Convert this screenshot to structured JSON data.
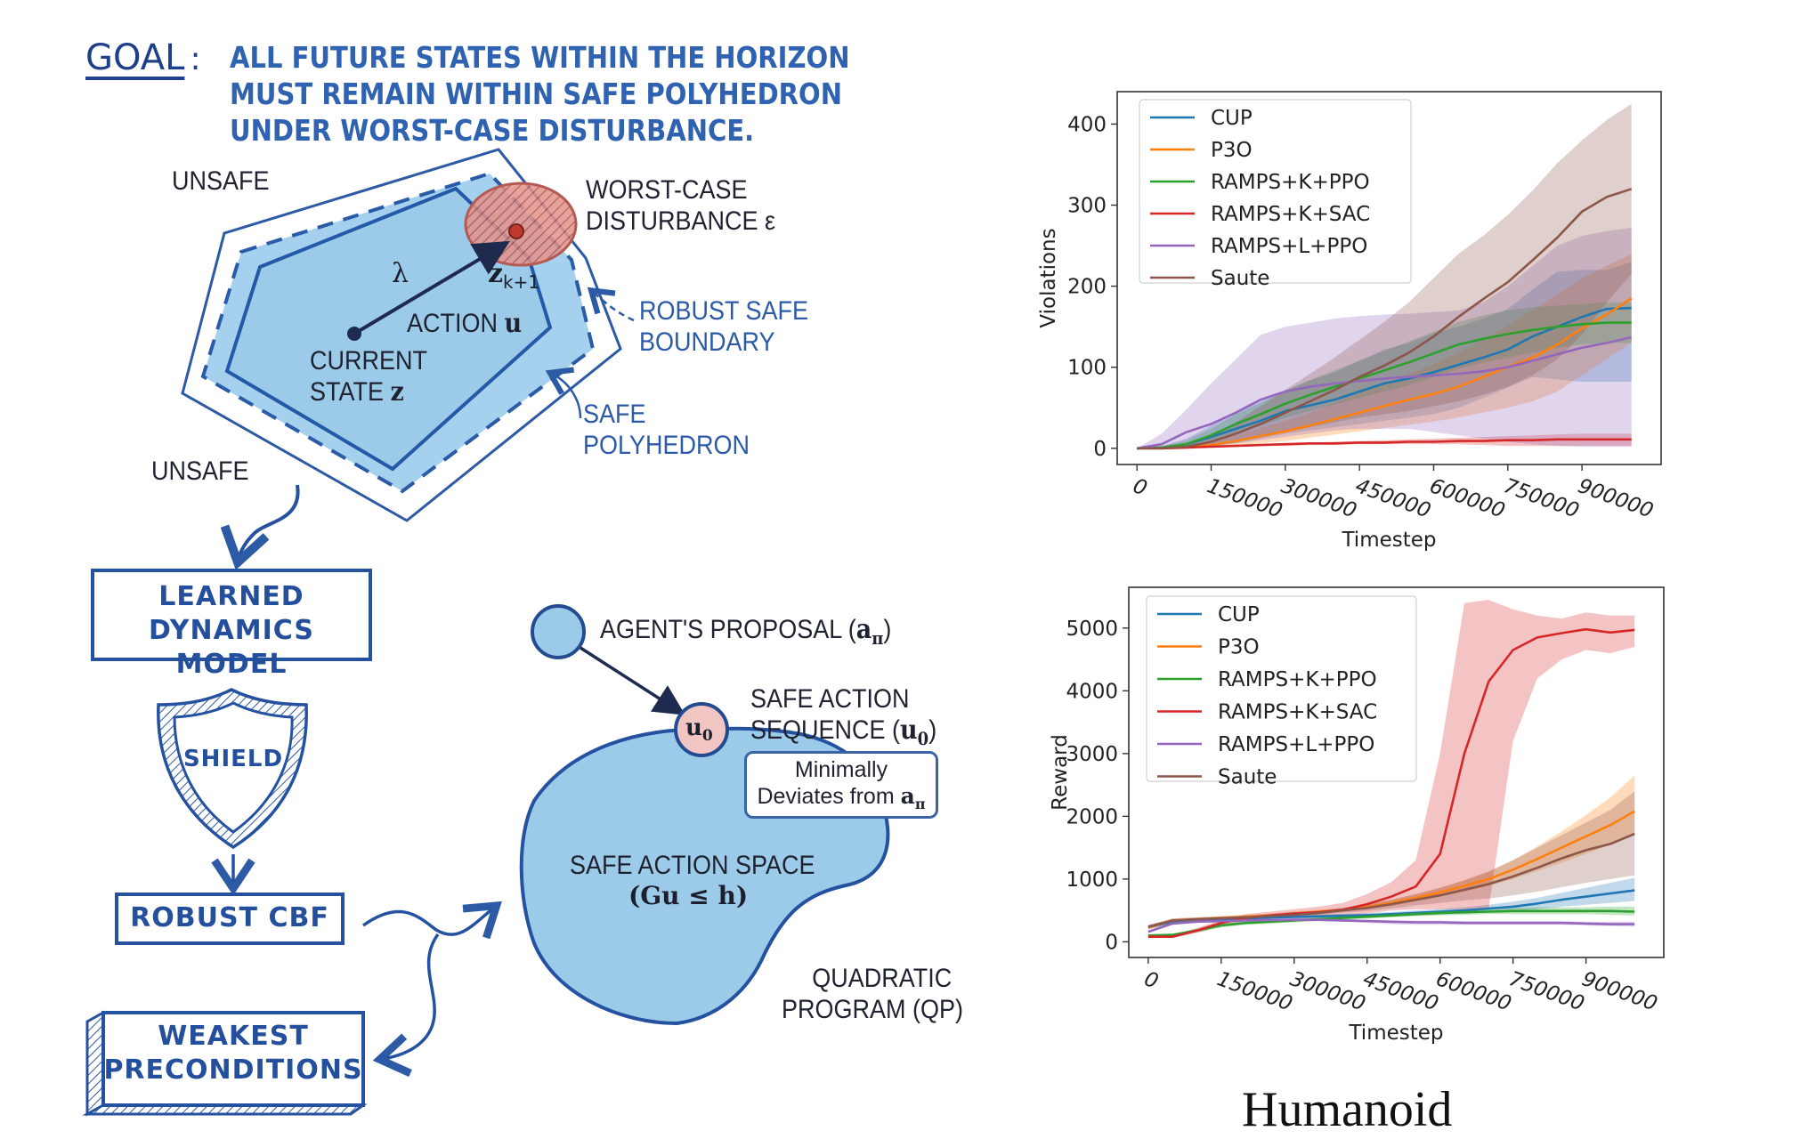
{
  "diagram": {
    "goal": {
      "label": "GOAL",
      "colon": ":",
      "lines": [
        "ALL FUTURE STATES WITHIN THE HORIZON",
        "MUST REMAIN WITHIN SAFE POLYHEDRON",
        "UNDER WORST-CASE DISTURBANCE."
      ]
    },
    "polyhedron": {
      "unsafe_top": "UNSAFE",
      "unsafe_bottom": "UNSAFE",
      "lambda": "λ",
      "next_state": "z",
      "next_state_sub": "k+1",
      "action_label": "ACTION ",
      "action_symbol": "u",
      "current_state_line1": "CURRENT",
      "current_state_line2": "STATE ",
      "current_state_symbol": "z",
      "worst_case_line1": "WORST-CASE",
      "worst_case_line2": "DISTURBANCE ε",
      "robust_boundary_line1": "ROBUST SAFE",
      "robust_boundary_line2": "BOUNDARY",
      "safe_poly_line1": "SAFE",
      "safe_poly_line2": "POLYHEDRON"
    },
    "pipeline": {
      "learned_model_line1": "LEARNED",
      "learned_model_line2": "DYNAMICS MODEL",
      "shield": "SHIELD",
      "robust_cbf": "ROBUST CBF",
      "weakest_line1": "WEAKEST",
      "weakest_line2": "PRECONDITIONS"
    },
    "qp": {
      "agent_proposal": "AGENT'S PROPOSAL (",
      "agent_symbol": "a",
      "agent_sub": "π",
      "agent_close": ")",
      "u0_symbol": "u",
      "u0_sub": "0",
      "safe_seq_line1": "SAFE ACTION",
      "safe_seq_line2": "SEQUENCE (",
      "safe_seq_symbol": "u",
      "safe_seq_sub": "0",
      "safe_seq_close": ")",
      "callout_line1": "Minimally",
      "callout_line2": "Deviates from ",
      "callout_symbol": "a",
      "callout_sub": "π",
      "space_line1": "SAFE ACTION SPACE",
      "space_line2": "(Gu ≤ h)",
      "qp_line1": "QUADRATIC",
      "qp_line2": "PROGRAM (QP)"
    },
    "colors": {
      "ink_blue": "#2d5aa5",
      "fill_blue": "#9ecbea",
      "disturbance_red": "#e28b84"
    }
  },
  "environment_label": "Humanoid",
  "chart_data": [
    {
      "type": "line",
      "title": "",
      "xlabel": "Timestep",
      "ylabel": "Violations",
      "xlim": [
        -40000,
        1060000
      ],
      "ylim": [
        -20,
        440
      ],
      "xticks": [
        0,
        150000,
        300000,
        450000,
        600000,
        750000,
        900000
      ],
      "xtick_labels": [
        "0",
        "150000",
        "300000",
        "450000",
        "600000",
        "750000",
        "900000"
      ],
      "yticks": [
        0,
        100,
        200,
        300,
        400
      ],
      "ytick_labels": [
        "0",
        "100",
        "200",
        "300",
        "400"
      ],
      "legend": "top-left",
      "grid": false,
      "x": [
        0,
        50000,
        100000,
        150000,
        200000,
        250000,
        300000,
        350000,
        400000,
        450000,
        500000,
        550000,
        600000,
        650000,
        700000,
        750000,
        800000,
        850000,
        900000,
        950000,
        1000000
      ],
      "series": [
        {
          "name": "CUP",
          "color": "#1f77b4",
          "values": [
            0,
            1,
            5,
            14,
            24,
            34,
            46,
            53,
            60,
            70,
            80,
            86,
            94,
            103,
            112,
            122,
            138,
            150,
            162,
            172,
            173
          ],
          "lower": [
            0,
            0,
            0,
            2,
            6,
            12,
            18,
            22,
            26,
            30,
            34,
            38,
            42,
            50,
            62,
            75,
            88,
            85,
            82,
            82,
            82
          ],
          "upper": [
            0,
            3,
            12,
            28,
            44,
            58,
            72,
            84,
            94,
            108,
            122,
            130,
            142,
            150,
            160,
            172,
            196,
            218,
            220,
            220,
            230
          ]
        },
        {
          "name": "P3O",
          "color": "#ff7f0e",
          "values": [
            0,
            0,
            1,
            4,
            9,
            15,
            21,
            28,
            36,
            44,
            52,
            60,
            67,
            76,
            88,
            100,
            112,
            128,
            148,
            165,
            185
          ],
          "lower": [
            0,
            0,
            0,
            1,
            3,
            6,
            9,
            13,
            17,
            21,
            25,
            29,
            33,
            38,
            44,
            50,
            58,
            70,
            90,
            110,
            130
          ],
          "upper": [
            0,
            1,
            3,
            8,
            16,
            25,
            34,
            44,
            56,
            68,
            80,
            92,
            104,
            118,
            134,
            152,
            170,
            190,
            210,
            225,
            240
          ]
        },
        {
          "name": "RAMPS+K+PPO",
          "color": "#2ca02c",
          "values": [
            0,
            1,
            5,
            16,
            30,
            42,
            55,
            66,
            76,
            86,
            96,
            106,
            117,
            128,
            135,
            141,
            146,
            150,
            153,
            155,
            155
          ],
          "lower": [
            0,
            0,
            1,
            8,
            18,
            28,
            38,
            46,
            54,
            62,
            70,
            78,
            88,
            98,
            106,
            112,
            118,
            124,
            128,
            130,
            130
          ],
          "upper": [
            0,
            2,
            10,
            24,
            42,
            56,
            70,
            84,
            96,
            108,
            120,
            132,
            144,
            156,
            164,
            170,
            174,
            176,
            178,
            180,
            180
          ]
        },
        {
          "name": "RAMPS+K+SAC",
          "color": "#d62728",
          "values": [
            0,
            0,
            1,
            2,
            3,
            4,
            5,
            6,
            6,
            7,
            7,
            8,
            8,
            9,
            9,
            10,
            10,
            11,
            11,
            11,
            11
          ],
          "lower": [
            0,
            0,
            0,
            1,
            2,
            3,
            3,
            4,
            4,
            5,
            5,
            5,
            5,
            5,
            4,
            3,
            3,
            3,
            3,
            3,
            3
          ],
          "upper": [
            0,
            1,
            2,
            3,
            4,
            5,
            6,
            7,
            8,
            9,
            10,
            11,
            12,
            13,
            14,
            15,
            16,
            17,
            18,
            18,
            18
          ]
        },
        {
          "name": "RAMPS+L+PPO",
          "color": "#9467bd",
          "values": [
            0,
            5,
            20,
            30,
            44,
            60,
            70,
            76,
            80,
            83,
            86,
            88,
            90,
            92,
            95,
            100,
            108,
            116,
            124,
            130,
            137
          ],
          "lower": [
            0,
            0,
            1,
            3,
            6,
            10,
            14,
            18,
            22,
            24,
            24,
            24,
            20,
            16,
            12,
            8,
            5,
            3,
            2,
            2,
            2
          ],
          "upper": [
            0,
            18,
            48,
            80,
            110,
            140,
            150,
            155,
            160,
            163,
            165,
            166,
            168,
            170,
            180,
            200,
            225,
            250,
            262,
            268,
            272
          ]
        },
        {
          "name": "Saute",
          "color": "#8c564b",
          "values": [
            0,
            0,
            2,
            8,
            18,
            30,
            44,
            58,
            72,
            88,
            102,
            118,
            138,
            162,
            184,
            205,
            232,
            260,
            292,
            310,
            320
          ],
          "lower": [
            0,
            0,
            1,
            3,
            8,
            14,
            20,
            26,
            32,
            38,
            42,
            46,
            52,
            58,
            66,
            76,
            90,
            110,
            140,
            180,
            215
          ],
          "upper": [
            0,
            1,
            4,
            14,
            32,
            52,
            72,
            92,
            112,
            134,
            156,
            180,
            210,
            240,
            262,
            288,
            318,
            352,
            380,
            405,
            425
          ]
        }
      ]
    },
    {
      "type": "line",
      "title": "",
      "xlabel": "Timestep",
      "ylabel": "Reward",
      "xlim": [
        -40000,
        1060000
      ],
      "ylim": [
        -250,
        5650
      ],
      "xticks": [
        0,
        150000,
        300000,
        450000,
        600000,
        750000,
        900000
      ],
      "xtick_labels": [
        "0",
        "150000",
        "300000",
        "450000",
        "600000",
        "750000",
        "900000"
      ],
      "yticks": [
        0,
        1000,
        2000,
        3000,
        4000,
        5000
      ],
      "ytick_labels": [
        "0",
        "1000",
        "2000",
        "3000",
        "4000",
        "5000"
      ],
      "legend": "top-left",
      "grid": false,
      "x": [
        0,
        50000,
        100000,
        150000,
        200000,
        250000,
        300000,
        350000,
        400000,
        450000,
        500000,
        550000,
        600000,
        650000,
        700000,
        750000,
        800000,
        850000,
        900000,
        950000,
        1000000
      ],
      "series": [
        {
          "name": "CUP",
          "color": "#1f77b4",
          "values": [
            230,
            320,
            340,
            360,
            375,
            385,
            395,
            405,
            415,
            425,
            440,
            460,
            480,
            500,
            530,
            560,
            610,
            670,
            720,
            770,
            820
          ],
          "lower": [
            200,
            290,
            310,
            330,
            345,
            355,
            365,
            375,
            385,
            395,
            405,
            420,
            435,
            450,
            470,
            490,
            520,
            560,
            590,
            620,
            650
          ],
          "upper": [
            260,
            350,
            370,
            390,
            405,
            415,
            425,
            435,
            445,
            455,
            475,
            500,
            525,
            550,
            590,
            640,
            700,
            780,
            860,
            940,
            1020
          ]
        },
        {
          "name": "P3O",
          "color": "#ff7f0e",
          "values": [
            230,
            340,
            360,
            380,
            400,
            420,
            450,
            480,
            510,
            560,
            620,
            700,
            790,
            890,
            1000,
            1150,
            1320,
            1500,
            1680,
            1860,
            2080
          ],
          "lower": [
            200,
            310,
            330,
            350,
            370,
            390,
            420,
            450,
            480,
            520,
            570,
            640,
            720,
            800,
            890,
            1000,
            1130,
            1260,
            1400,
            1550,
            1700
          ],
          "upper": [
            260,
            370,
            390,
            410,
            430,
            450,
            480,
            510,
            540,
            600,
            670,
            760,
            860,
            980,
            1120,
            1300,
            1520,
            1760,
            2020,
            2300,
            2650
          ]
        },
        {
          "name": "RAMPS+K+PPO",
          "color": "#2ca02c",
          "values": [
            100,
            110,
            180,
            260,
            300,
            320,
            340,
            360,
            380,
            400,
            420,
            440,
            460,
            470,
            480,
            490,
            490,
            490,
            490,
            490,
            480
          ],
          "lower": [
            80,
            90,
            150,
            230,
            270,
            290,
            310,
            330,
            350,
            370,
            390,
            410,
            420,
            430,
            440,
            440,
            440,
            440,
            440,
            430,
            420
          ],
          "upper": [
            120,
            130,
            210,
            290,
            330,
            350,
            370,
            390,
            410,
            430,
            450,
            470,
            500,
            510,
            520,
            540,
            550,
            550,
            550,
            560,
            560
          ]
        },
        {
          "name": "RAMPS+K+SAC",
          "color": "#d62728",
          "values": [
            80,
            80,
            180,
            300,
            380,
            420,
            450,
            470,
            510,
            600,
            720,
            880,
            1400,
            3000,
            4150,
            4650,
            4850,
            4920,
            4980,
            4930,
            4970
          ],
          "lower": [
            60,
            60,
            140,
            250,
            330,
            370,
            390,
            400,
            420,
            450,
            500,
            520,
            520,
            520,
            520,
            3200,
            4200,
            4500,
            4650,
            4600,
            4700
          ],
          "upper": [
            100,
            100,
            220,
            350,
            440,
            480,
            520,
            560,
            620,
            760,
            950,
            1300,
            3000,
            5400,
            5450,
            5300,
            5200,
            5150,
            5250,
            5200,
            5200
          ]
        },
        {
          "name": "RAMPS+L+PPO",
          "color": "#9467bd",
          "values": [
            160,
            290,
            320,
            330,
            340,
            345,
            350,
            350,
            340,
            330,
            320,
            310,
            310,
            300,
            300,
            300,
            300,
            300,
            290,
            280,
            280
          ],
          "lower": [
            140,
            270,
            300,
            310,
            320,
            325,
            330,
            330,
            320,
            300,
            280,
            270,
            270,
            270,
            270,
            270,
            270,
            270,
            260,
            250,
            240
          ],
          "upper": [
            180,
            310,
            340,
            350,
            360,
            365,
            370,
            370,
            360,
            350,
            340,
            340,
            340,
            330,
            330,
            330,
            330,
            330,
            320,
            320,
            320
          ]
        },
        {
          "name": "Saute",
          "color": "#8c564b",
          "values": [
            240,
            340,
            360,
            375,
            390,
            410,
            430,
            460,
            500,
            540,
            600,
            670,
            740,
            830,
            920,
            1040,
            1180,
            1330,
            1460,
            1560,
            1720
          ],
          "lower": [
            210,
            310,
            330,
            345,
            360,
            380,
            400,
            430,
            460,
            490,
            530,
            580,
            620,
            660,
            690,
            740,
            800,
            870,
            940,
            1000,
            1060
          ],
          "upper": [
            270,
            370,
            390,
            405,
            420,
            440,
            460,
            490,
            540,
            600,
            670,
            760,
            860,
            980,
            1120,
            1300,
            1500,
            1700,
            1900,
            2100,
            2400
          ]
        }
      ]
    }
  ]
}
